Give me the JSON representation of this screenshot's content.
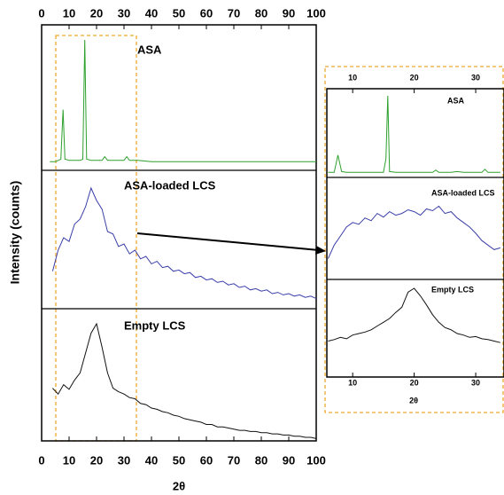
{
  "chart_data": [
    {
      "type": "line",
      "xlabel": "2θ",
      "ylabel": "Intensity (counts)",
      "xlim": [
        0,
        100
      ],
      "xticks": [
        0,
        10,
        20,
        30,
        40,
        50,
        60,
        70,
        80,
        90,
        100
      ],
      "ylim": [
        0,
        100
      ],
      "series": [
        {
          "name": "ASA",
          "color": "#2ca02c",
          "x": [
            3,
            5,
            7,
            7.8,
            8.5,
            10,
            12,
            14,
            15,
            15.7,
            16.4,
            18,
            20,
            22,
            23,
            24,
            26,
            28,
            30,
            31,
            32,
            35,
            40,
            50,
            60,
            70,
            80,
            90,
            100
          ],
          "values": [
            4,
            4,
            6,
            45,
            6,
            5,
            5,
            5,
            6,
            100,
            6,
            5,
            5,
            5,
            8,
            5,
            5,
            5,
            5,
            8,
            5,
            5,
            4,
            4,
            4,
            4,
            4,
            4,
            4
          ]
        },
        {
          "name": "ASA-loaded LCS",
          "color": "#3a3fa8",
          "x": [
            4,
            6,
            8,
            10,
            12,
            14,
            16,
            18,
            20,
            22,
            24,
            26,
            28,
            30,
            32,
            34,
            36,
            38,
            40,
            42,
            44,
            46,
            48,
            50,
            52,
            54,
            56,
            58,
            60,
            62,
            64,
            66,
            68,
            70,
            72,
            74,
            76,
            78,
            80,
            82,
            84,
            86,
            88,
            90,
            92,
            94,
            96,
            98,
            100
          ],
          "values": [
            28,
            45,
            55,
            52,
            66,
            70,
            80,
            95,
            85,
            78,
            60,
            58,
            48,
            50,
            42,
            45,
            38,
            40,
            34,
            36,
            31,
            32,
            28,
            29,
            26,
            27,
            23,
            24,
            21,
            22,
            19,
            20,
            17,
            18,
            15,
            16,
            13,
            14,
            12,
            13,
            10,
            11,
            9,
            10,
            8,
            9,
            7,
            8,
            6
          ]
        },
        {
          "name": "Empty LCS",
          "color": "#111111",
          "x": [
            4,
            6,
            8,
            10,
            12,
            14,
            16,
            18,
            20,
            22,
            24,
            26,
            28,
            30,
            32,
            34,
            36,
            38,
            40,
            42,
            44,
            46,
            48,
            50,
            52,
            54,
            56,
            58,
            60,
            62,
            64,
            66,
            68,
            70,
            72,
            74,
            76,
            78,
            80,
            82,
            84,
            86,
            88,
            90,
            92,
            94,
            96,
            98,
            100
          ],
          "values": [
            45,
            40,
            48,
            44,
            52,
            58,
            75,
            92,
            100,
            80,
            58,
            45,
            42,
            40,
            37,
            36,
            32,
            31,
            28,
            27,
            25,
            24,
            22,
            21,
            19,
            18,
            17,
            16,
            14,
            14,
            12,
            12,
            11,
            10,
            9,
            9,
            8,
            8,
            7,
            7,
            6,
            6,
            5,
            5,
            4,
            4,
            3,
            3,
            2
          ]
        }
      ]
    },
    {
      "type": "line",
      "xlabel": "2θ",
      "xlim": [
        5.8,
        34.6
      ],
      "xticks": [
        10,
        20,
        30
      ],
      "ylim": [
        0,
        100
      ],
      "series": [
        {
          "name": "ASA",
          "color": "#2ca02c",
          "x": [
            6,
            7,
            7.6,
            8.2,
            9,
            11,
            13,
            15,
            15.4,
            15.7,
            16,
            17,
            19,
            21,
            23,
            23.5,
            24,
            26,
            27,
            28,
            30,
            31,
            31.5,
            32,
            34
          ],
          "values": [
            3,
            3,
            25,
            4,
            3,
            3,
            3,
            3,
            20,
            100,
            4,
            3,
            3,
            3,
            3,
            6,
            3,
            3,
            4,
            3,
            3,
            3,
            7,
            3,
            3
          ]
        },
        {
          "name": "ASA-loaded LCS",
          "color": "#3a3fa8",
          "x": [
            6,
            7,
            8,
            9,
            10,
            11,
            12,
            13,
            14,
            15,
            16,
            17,
            18,
            19,
            20,
            21,
            22,
            23,
            24,
            25,
            26,
            27,
            28,
            29,
            30,
            31,
            32,
            33,
            34
          ],
          "values": [
            20,
            35,
            45,
            55,
            60,
            58,
            65,
            62,
            70,
            66,
            72,
            68,
            70,
            74,
            72,
            68,
            75,
            73,
            78,
            70,
            72,
            65,
            60,
            55,
            48,
            40,
            35,
            30,
            32
          ]
        },
        {
          "name": "Empty LCS",
          "color": "#111111",
          "x": [
            6,
            7,
            8,
            9,
            10,
            11,
            12,
            13,
            14,
            15,
            16,
            17,
            18,
            19,
            20,
            21,
            22,
            23,
            24,
            25,
            26,
            27,
            28,
            29,
            30,
            31,
            32,
            33,
            34
          ],
          "values": [
            30,
            32,
            35,
            33,
            38,
            40,
            42,
            45,
            50,
            55,
            60,
            68,
            75,
            95,
            100,
            90,
            78,
            65,
            55,
            48,
            45,
            40,
            38,
            35,
            36,
            33,
            32,
            30,
            28
          ]
        }
      ]
    }
  ]
}
